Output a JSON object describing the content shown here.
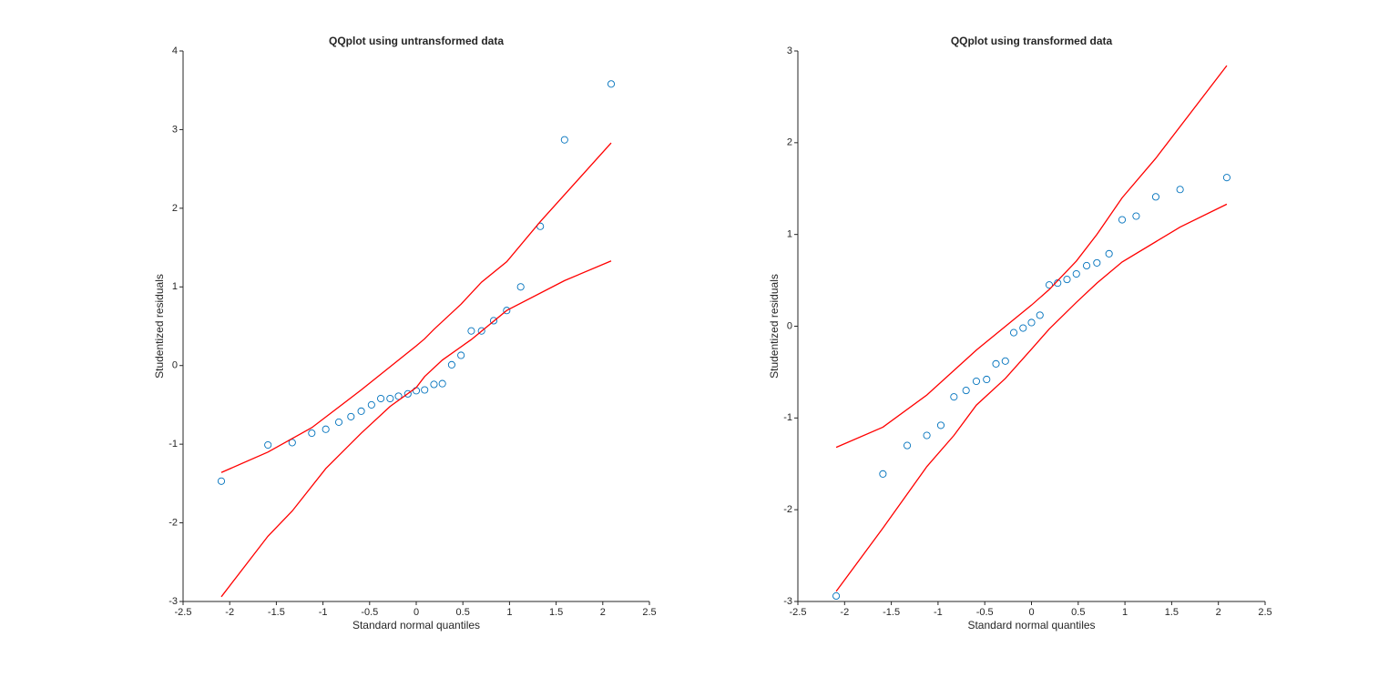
{
  "chart_data": [
    {
      "type": "scatter",
      "title": "QQplot using untransformed data",
      "xlabel": "Standard normal quantiles",
      "ylabel": "Studentized residuals",
      "xlim": [
        -2.5,
        2.5
      ],
      "ylim": [
        -3,
        4
      ],
      "xticks": [
        -2.5,
        -2,
        -1.5,
        -1,
        -0.5,
        0,
        0.5,
        1,
        1.5,
        2,
        2.5
      ],
      "yticks": [
        -3,
        -2,
        -1,
        0,
        1,
        2,
        3,
        4
      ],
      "series": [
        {
          "type": "scatter",
          "color": "#0072bd",
          "x": [
            -2.09,
            -1.59,
            -1.33,
            -1.12,
            -0.97,
            -0.83,
            -0.7,
            -0.59,
            -0.48,
            -0.38,
            -0.28,
            -0.19,
            -0.09,
            0,
            0.09,
            0.19,
            0.28,
            0.38,
            0.48,
            0.59,
            0.7,
            0.83,
            0.97,
            1.12,
            1.33,
            1.59,
            2.09
          ],
          "values": [
            -1.47,
            -1.01,
            -0.98,
            -0.86,
            -0.81,
            -0.72,
            -0.65,
            -0.58,
            -0.5,
            -0.42,
            -0.42,
            -0.39,
            -0.36,
            -0.32,
            -0.31,
            -0.24,
            -0.23,
            0.01,
            0.13,
            0.44,
            0.44,
            0.57,
            0.7,
            1.0,
            1.77,
            2.87,
            3.58
          ]
        },
        {
          "type": "line",
          "color": "#ff0000",
          "x": [
            -2.09,
            -1.59,
            -1.12,
            -0.59,
            0,
            0.09,
            0.19,
            0.48,
            0.7,
            0.97,
            1.33,
            2.09
          ],
          "values": [
            -1.36,
            -1.1,
            -0.79,
            -0.31,
            0.25,
            0.34,
            0.46,
            0.78,
            1.06,
            1.32,
            1.83,
            2.83
          ]
        },
        {
          "type": "line",
          "color": "#ff0000",
          "x": [
            -2.09,
            -1.59,
            -1.33,
            -0.97,
            -0.59,
            -0.28,
            0,
            0.09,
            0.28,
            0.59,
            0.97,
            1.59,
            2.09
          ],
          "values": [
            -2.94,
            -2.17,
            -1.85,
            -1.31,
            -0.86,
            -0.52,
            -0.28,
            -0.14,
            0.07,
            0.33,
            0.7,
            1.08,
            1.33
          ]
        }
      ]
    },
    {
      "type": "scatter",
      "title": "QQplot using transformed data",
      "xlabel": "Standard normal quantiles",
      "ylabel": "Studentized residuals",
      "xlim": [
        -2.5,
        2.5
      ],
      "ylim": [
        -3,
        3
      ],
      "xticks": [
        -2.5,
        -2,
        -1.5,
        -1,
        -0.5,
        0,
        0.5,
        1,
        1.5,
        2,
        2.5
      ],
      "yticks": [
        -3,
        -2,
        -1,
        0,
        1,
        2,
        3
      ],
      "series": [
        {
          "type": "scatter",
          "color": "#0072bd",
          "x": [
            -2.09,
            -1.59,
            -1.33,
            -1.12,
            -0.97,
            -0.83,
            -0.7,
            -0.59,
            -0.48,
            -0.38,
            -0.28,
            -0.19,
            -0.09,
            0,
            0.09,
            0.19,
            0.28,
            0.38,
            0.48,
            0.59,
            0.7,
            0.83,
            0.97,
            1.12,
            1.33,
            1.59,
            2.09
          ],
          "values": [
            -2.94,
            -1.61,
            -1.3,
            -1.19,
            -1.08,
            -0.77,
            -0.7,
            -0.6,
            -0.58,
            -0.41,
            -0.38,
            -0.07,
            -0.02,
            0.04,
            0.12,
            0.45,
            0.47,
            0.51,
            0.57,
            0.66,
            0.69,
            0.79,
            1.16,
            1.2,
            1.41,
            1.49,
            1.62
          ]
        },
        {
          "type": "line",
          "color": "#ff0000",
          "x": [
            -2.09,
            -1.59,
            -1.12,
            -0.59,
            0,
            0.19,
            0.48,
            0.7,
            0.97,
            1.33,
            2.09
          ],
          "values": [
            -1.32,
            -1.1,
            -0.75,
            -0.26,
            0.23,
            0.4,
            0.71,
            1.0,
            1.4,
            1.83,
            2.84
          ]
        },
        {
          "type": "line",
          "color": "#ff0000",
          "x": [
            -2.09,
            -1.59,
            -1.12,
            -0.83,
            -0.59,
            -0.28,
            0,
            0.19,
            0.48,
            0.7,
            0.97,
            1.59,
            2.09
          ],
          "values": [
            -2.89,
            -2.2,
            -1.53,
            -1.19,
            -0.86,
            -0.57,
            -0.25,
            -0.03,
            0.26,
            0.47,
            0.7,
            1.08,
            1.33
          ]
        }
      ]
    }
  ]
}
